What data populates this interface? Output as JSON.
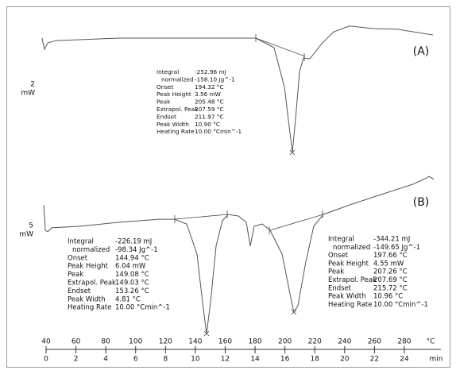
{
  "chart_data": {
    "type": "line",
    "xlim": [
      40,
      304.5
    ],
    "xticks": [
      40,
      60,
      80,
      100,
      120,
      140,
      160,
      180,
      200,
      220,
      240,
      260,
      280
    ],
    "x_unit": "°C",
    "x2lim": [
      0,
      26.45
    ],
    "x2ticks": [
      0,
      2,
      4,
      6,
      8,
      10,
      12,
      14,
      16,
      18,
      20,
      22,
      24
    ],
    "x2_unit": "min",
    "series": [
      {
        "name": "(A)",
        "color": "#555555",
        "x": [
          37.3,
          38.9,
          41.1,
          46.4,
          89.0,
          142.2,
          180.5,
          192.7,
          199.7,
          202.9,
          205.0,
          207.1,
          209.8,
          212.4,
          216.7,
          224.7,
          232.7,
          243.3,
          259.3,
          275.2,
          299.2
        ],
        "values": [
          0.05,
          -0.3,
          -0.1,
          -0.03,
          0.05,
          0.05,
          0.05,
          -0.25,
          -1.5,
          -2.75,
          -3.55,
          -2.5,
          -1.0,
          -0.58,
          -0.6,
          -0.12,
          0.25,
          0.43,
          0.35,
          0.33,
          0.15
        ],
        "scale_label": [
          "2",
          "mW"
        ],
        "annotations": [
          {
            "rows": [
              [
                "Integral",
                "-252.96 mJ"
              ],
              [
                "normalized",
                "-158.10 Jg^-1"
              ],
              [
                "Onset",
                "194.32 °C"
              ],
              [
                "Peak Height",
                "3.56 mW"
              ],
              [
                "Peak",
                "205.48 °C"
              ],
              [
                "Extrapol. Peak",
                "207.59 °C"
              ],
              [
                "Endset",
                "211.97 °C"
              ],
              [
                "Peak Width",
                "10.90 °C"
              ],
              [
                "Heating Rate",
                "10.00 °Cmin^-1"
              ]
            ]
          }
        ]
      },
      {
        "name": "(B)",
        "color": "#555555",
        "x": [
          38.4,
          39.5,
          41.1,
          43.7,
          62.4,
          89.0,
          115.6,
          126.2,
          134.2,
          141.1,
          144.8,
          147.5,
          150.2,
          153.9,
          158.1,
          161.9,
          168.8,
          174.1,
          176.8,
          179.4,
          184.8,
          190.1,
          198.1,
          203.4,
          206.0,
          208.7,
          214.0,
          219.3,
          225.7,
          243.3,
          264.6,
          285.9,
          293.9,
          296.6,
          299.8
        ],
        "values": [
          1.33,
          0,
          -0.08,
          0.13,
          0.21,
          0.42,
          0.58,
          0.58,
          0.33,
          -1.25,
          -3.75,
          -5.42,
          -3.75,
          -0.83,
          0.5,
          0.83,
          0.75,
          0.42,
          -0.83,
          0.21,
          0.33,
          0,
          -1.25,
          -3.33,
          -4.29,
          -3.96,
          -1.67,
          0.21,
          0.83,
          1.33,
          1.88,
          2.42,
          2.71,
          2.83,
          2.67
        ],
        "scale_label": [
          "5",
          "mW"
        ],
        "annotations": [
          {
            "rows": [
              [
                "Integral",
                "-226.19 mJ"
              ],
              [
                "normalized",
                "-98.34 Jg^-1"
              ],
              [
                "Onset",
                "144.94 °C"
              ],
              [
                "Peak Height",
                "6.04 mW"
              ],
              [
                "Peak",
                "149.08 °C"
              ],
              [
                "Extrapol. Peak",
                "149.03 °C"
              ],
              [
                "Endset",
                "153.26 °C"
              ],
              [
                "Peak Width",
                "4.81 °C"
              ],
              [
                "Heating Rate",
                "10.00 °Cmin^-1"
              ]
            ]
          },
          {
            "rows": [
              [
                "Integral",
                "-344.21 mJ"
              ],
              [
                "normalized",
                "-149.65 Jg^-1"
              ],
              [
                "Onset",
                "197.66 °C"
              ],
              [
                "Peak Height",
                "4.55 mW"
              ],
              [
                "Peak",
                "207.26 °C"
              ],
              [
                "Extrapol. Peak",
                "207.69 °C"
              ],
              [
                "Endset",
                "215.72 °C"
              ],
              [
                "Peak Width",
                "10.96 °C"
              ],
              [
                "Heating Rate",
                "10.00 °Cmin^-1"
              ]
            ]
          }
        ]
      }
    ]
  }
}
